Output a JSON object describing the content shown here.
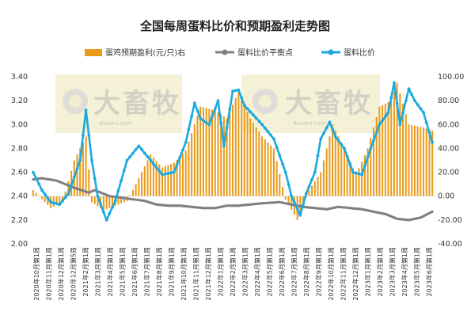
{
  "chart_data": {
    "type": "bar+line",
    "title": "全国每周蛋料比价和预期盈利走势图",
    "legend_position": "top",
    "grid": false,
    "colors": {
      "bar": "#E89B1A",
      "breakeven": "#808080",
      "ratio": "#1BA9E0"
    },
    "y_left": {
      "min": 2.0,
      "max": 3.4,
      "step": 0.2,
      "ticks": [
        "2.00",
        "2.20",
        "2.40",
        "2.60",
        "2.80",
        "3.00",
        "3.20",
        "3.40"
      ]
    },
    "y_right": {
      "min": -40,
      "max": 100,
      "step": 20,
      "ticks": [
        "-40.00",
        "-20.00",
        "0.00",
        "20.00",
        "40.00",
        "60.00",
        "80.00",
        "100.00"
      ]
    },
    "x_labels": [
      "2020年10月第1周",
      "2020年11月第1周",
      "2020年12月第1周",
      "2020年12月第5周",
      "2021年2月第1周",
      "2021年3月第1周",
      "2021年4月第1周",
      "2021年5月第1周",
      "2021年6月第1周",
      "2021年7月第1周",
      "2021年8月第1周",
      "2021年9月第1周",
      "2021年10月第1周",
      "2021年11月第1周",
      "2021年12月第1周",
      "2022年1月第1周",
      "2022年2月第1周",
      "2022年3月第1周",
      "2022年4月第1周",
      "2022年5月第1周",
      "2022年6月第1周",
      "2022年7月第1周",
      "2022年8月第1周",
      "2022年9月第1周",
      "2022年10月第1周",
      "2022年11月第1周",
      "2022年12月第1周",
      "2023年1月第1周",
      "2023年2月第1周",
      "2023年3月第1周",
      "2023年4月第1周",
      "2023年5月第1周",
      "2023年6月第1周"
    ],
    "weeks": 137,
    "series": [
      {
        "name": "蛋鸡预期盈利(元/只)右",
        "type": "bar",
        "axis": "right",
        "keyframes": [
          [
            0,
            5
          ],
          [
            6,
            -10
          ],
          [
            10,
            -5
          ],
          [
            14,
            30
          ],
          [
            18,
            50
          ],
          [
            20,
            -5
          ],
          [
            24,
            -12
          ],
          [
            28,
            -8
          ],
          [
            32,
            -4
          ],
          [
            35,
            10
          ],
          [
            40,
            35
          ],
          [
            44,
            24
          ],
          [
            48,
            28
          ],
          [
            52,
            38
          ],
          [
            57,
            75
          ],
          [
            62,
            72
          ],
          [
            66,
            65
          ],
          [
            70,
            88
          ],
          [
            74,
            65
          ],
          [
            78,
            50
          ],
          [
            82,
            40
          ],
          [
            86,
            -3
          ],
          [
            90,
            -20
          ],
          [
            94,
            5
          ],
          [
            98,
            20
          ],
          [
            102,
            60
          ],
          [
            106,
            40
          ],
          [
            110,
            18
          ],
          [
            114,
            40
          ],
          [
            118,
            75
          ],
          [
            122,
            80
          ],
          [
            124,
            95
          ],
          [
            128,
            60
          ],
          [
            132,
            58
          ],
          [
            136,
            55
          ],
          [
            140,
            15
          ],
          [
            144,
            40
          ],
          [
            148,
            12
          ],
          [
            152,
            40
          ],
          [
            156,
            65
          ],
          [
            160,
            45
          ]
        ]
      },
      {
        "name": "蛋料比价平衡点",
        "type": "line",
        "axis": "left",
        "keyframes": [
          [
            0,
            2.54
          ],
          [
            3,
            2.55
          ],
          [
            8,
            2.53
          ],
          [
            14,
            2.47
          ],
          [
            19,
            2.43
          ],
          [
            21,
            2.45
          ],
          [
            26,
            2.4
          ],
          [
            32,
            2.38
          ],
          [
            38,
            2.36
          ],
          [
            42,
            2.33
          ],
          [
            46,
            2.32
          ],
          [
            50,
            2.32
          ],
          [
            54,
            2.31
          ],
          [
            58,
            2.3
          ],
          [
            62,
            2.3
          ],
          [
            66,
            2.32
          ],
          [
            70,
            2.32
          ],
          [
            74,
            2.33
          ],
          [
            78,
            2.34
          ],
          [
            84,
            2.35
          ],
          [
            88,
            2.33
          ],
          [
            92,
            2.31
          ],
          [
            96,
            2.3
          ],
          [
            100,
            2.29
          ],
          [
            104,
            2.31
          ],
          [
            108,
            2.3
          ],
          [
            112,
            2.29
          ],
          [
            116,
            2.27
          ],
          [
            120,
            2.25
          ],
          [
            124,
            2.21
          ],
          [
            128,
            2.2
          ],
          [
            132,
            2.22
          ],
          [
            136,
            2.27
          ],
          [
            140,
            2.27
          ],
          [
            144,
            2.26
          ],
          [
            148,
            2.27
          ],
          [
            152,
            2.28
          ],
          [
            156,
            2.28
          ],
          [
            160,
            2.29
          ]
        ]
      },
      {
        "name": "蛋料比价",
        "type": "line",
        "axis": "left",
        "keyframes": [
          [
            0,
            2.6
          ],
          [
            3,
            2.45
          ],
          [
            6,
            2.35
          ],
          [
            9,
            2.33
          ],
          [
            12,
            2.42
          ],
          [
            16,
            2.7
          ],
          [
            18,
            3.12
          ],
          [
            20,
            2.7
          ],
          [
            22,
            2.4
          ],
          [
            25,
            2.2
          ],
          [
            28,
            2.36
          ],
          [
            32,
            2.7
          ],
          [
            36,
            2.82
          ],
          [
            40,
            2.7
          ],
          [
            44,
            2.58
          ],
          [
            48,
            2.6
          ],
          [
            52,
            2.85
          ],
          [
            55,
            3.18
          ],
          [
            57,
            3.05
          ],
          [
            60,
            3.0
          ],
          [
            63,
            3.2
          ],
          [
            65,
            2.82
          ],
          [
            68,
            3.28
          ],
          [
            70,
            3.29
          ],
          [
            72,
            3.16
          ],
          [
            75,
            3.08
          ],
          [
            78,
            3.0
          ],
          [
            82,
            2.88
          ],
          [
            86,
            2.6
          ],
          [
            88,
            2.4
          ],
          [
            91,
            2.24
          ],
          [
            93,
            2.42
          ],
          [
            96,
            2.6
          ],
          [
            98,
            2.88
          ],
          [
            101,
            3.02
          ],
          [
            103,
            2.9
          ],
          [
            106,
            2.8
          ],
          [
            109,
            2.6
          ],
          [
            112,
            2.58
          ],
          [
            115,
            2.8
          ],
          [
            118,
            3.0
          ],
          [
            121,
            3.1
          ],
          [
            123,
            3.35
          ],
          [
            125,
            3.0
          ],
          [
            128,
            3.3
          ],
          [
            130,
            3.2
          ],
          [
            133,
            3.1
          ],
          [
            136,
            2.85
          ],
          [
            138,
            2.6
          ],
          [
            140,
            2.6
          ],
          [
            142,
            2.82
          ],
          [
            144,
            2.65
          ],
          [
            146,
            2.63
          ],
          [
            148,
            2.75
          ],
          [
            151,
            3.0
          ],
          [
            153,
            3.02
          ],
          [
            155,
            2.9
          ],
          [
            157,
            2.92
          ],
          [
            159,
            2.85
          ],
          [
            160,
            2.84
          ]
        ]
      }
    ]
  }
}
